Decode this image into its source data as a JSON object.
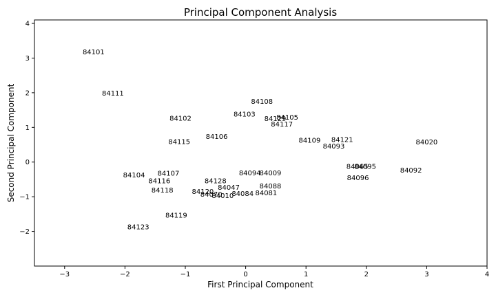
{
  "chart_data": {
    "type": "scatter",
    "title": "Principal Component Analysis",
    "xlabel": "First Principal Component",
    "ylabel": "Second Principal Component",
    "xlim": [
      -3.5,
      4.0
    ],
    "ylim": [
      -3.0,
      4.1
    ],
    "xticks": [
      -3,
      -2,
      -1,
      0,
      1,
      2,
      3,
      4
    ],
    "yticks": [
      -2,
      -1,
      0,
      1,
      2,
      3,
      4
    ],
    "grid": false,
    "marker": "text-labels-only",
    "points": [
      {
        "label": "84101",
        "x": -2.52,
        "y": 3.18
      },
      {
        "label": "84111",
        "x": -2.2,
        "y": 1.99
      },
      {
        "label": "84108",
        "x": 0.27,
        "y": 1.75
      },
      {
        "label": "84103",
        "x": -0.02,
        "y": 1.38
      },
      {
        "label": "84102",
        "x": -1.08,
        "y": 1.26
      },
      {
        "label": "84129",
        "x": 0.49,
        "y": 1.25
      },
      {
        "label": "84105",
        "x": 0.69,
        "y": 1.29
      },
      {
        "label": "84117",
        "x": 0.6,
        "y": 1.1
      },
      {
        "label": "84106",
        "x": -0.48,
        "y": 0.74
      },
      {
        "label": "84115",
        "x": -1.1,
        "y": 0.59
      },
      {
        "label": "84109",
        "x": 1.06,
        "y": 0.63
      },
      {
        "label": "84121",
        "x": 1.6,
        "y": 0.65
      },
      {
        "label": "84093",
        "x": 1.46,
        "y": 0.46
      },
      {
        "label": "84020",
        "x": 3.0,
        "y": 0.58
      },
      {
        "label": "84065",
        "x": 1.85,
        "y": -0.12
      },
      {
        "label": "84095",
        "x": 1.98,
        "y": -0.12
      },
      {
        "label": "84092",
        "x": 2.74,
        "y": -0.23
      },
      {
        "label": "84096",
        "x": 1.86,
        "y": -0.45
      },
      {
        "label": "84107",
        "x": -1.28,
        "y": -0.32
      },
      {
        "label": "84104",
        "x": -1.85,
        "y": -0.37
      },
      {
        "label": "84116",
        "x": -1.43,
        "y": -0.54
      },
      {
        "label": "84128",
        "x": -0.5,
        "y": -0.54
      },
      {
        "label": "84094",
        "x": 0.07,
        "y": -0.31
      },
      {
        "label": "84009",
        "x": 0.41,
        "y": -0.31
      },
      {
        "label": "84047",
        "x": -0.28,
        "y": -0.73
      },
      {
        "label": "84088",
        "x": 0.41,
        "y": -0.69
      },
      {
        "label": "84118",
        "x": -1.38,
        "y": -0.81
      },
      {
        "label": "84120",
        "x": -0.71,
        "y": -0.85
      },
      {
        "label": "84070",
        "x": -0.57,
        "y": -0.93
      },
      {
        "label": "84010",
        "x": -0.38,
        "y": -0.97
      },
      {
        "label": "84084",
        "x": -0.05,
        "y": -0.91
      },
      {
        "label": "84081",
        "x": 0.34,
        "y": -0.89
      },
      {
        "label": "84119",
        "x": -1.15,
        "y": -1.53
      },
      {
        "label": "84123",
        "x": -1.78,
        "y": -1.87
      }
    ]
  }
}
